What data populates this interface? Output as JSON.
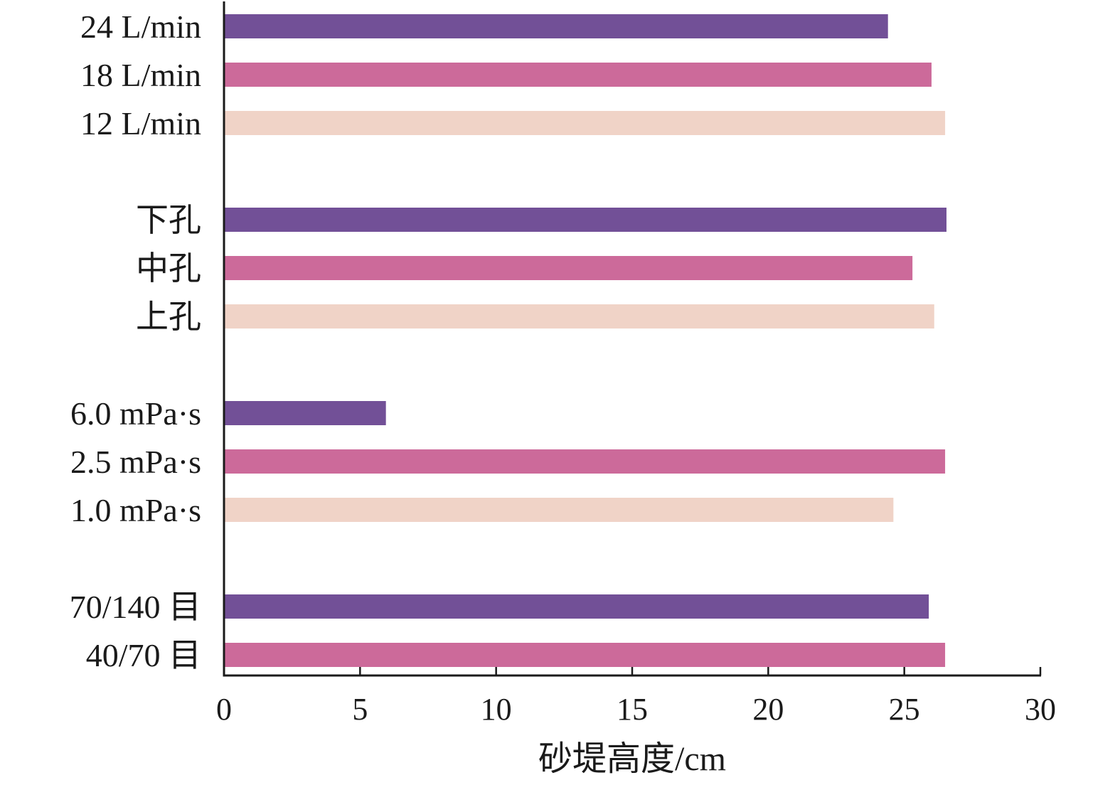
{
  "chart_data": {
    "type": "bar",
    "orientation": "horizontal",
    "xlabel": "砂堤高度/cm",
    "xlim": [
      0,
      30
    ],
    "xticks": [
      0,
      5,
      10,
      15,
      20,
      25,
      30
    ],
    "grid": false,
    "legend": "none",
    "colors": {
      "dark": "#725097",
      "mid": "#cc6a9a",
      "light": "#f0d3c7"
    },
    "groups": [
      {
        "bars": [
          {
            "label": "24 L/min",
            "value": 24.4,
            "color": "dark"
          },
          {
            "label": "18 L/min",
            "value": 26.0,
            "color": "mid"
          },
          {
            "label": "12 L/min",
            "value": 26.5,
            "color": "light"
          }
        ]
      },
      {
        "bars": [
          {
            "label": "下孔",
            "value": 26.55,
            "color": "dark"
          },
          {
            "label": "中孔",
            "value": 25.3,
            "color": "mid"
          },
          {
            "label": "上孔",
            "value": 26.1,
            "color": "light"
          }
        ]
      },
      {
        "bars": [
          {
            "label": "6.0 mPa·s",
            "value": 5.95,
            "color": "dark"
          },
          {
            "label": "2.5 mPa·s",
            "value": 26.5,
            "color": "mid"
          },
          {
            "label": "1.0 mPa·s",
            "value": 24.6,
            "color": "light"
          }
        ]
      },
      {
        "bars": [
          {
            "label": "70/140 目",
            "value": 25.9,
            "color": "dark"
          },
          {
            "label": "40/70 目",
            "value": 26.5,
            "color": "mid"
          }
        ]
      }
    ]
  }
}
